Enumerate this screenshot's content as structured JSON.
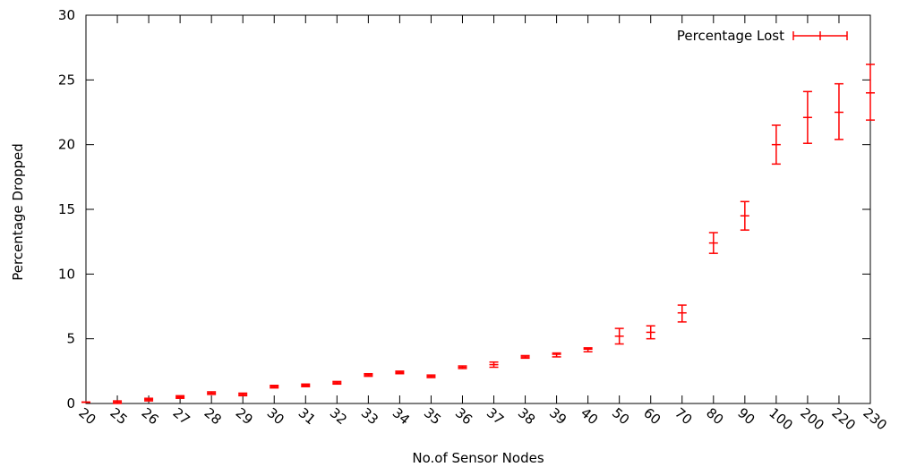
{
  "chart_data": {
    "type": "scatter",
    "title": "",
    "xlabel": "No.of Sensor Nodes",
    "ylabel": "Percentage Dropped",
    "categories": [
      "20",
      "25",
      "26",
      "27",
      "28",
      "29",
      "30",
      "31",
      "32",
      "33",
      "34",
      "35",
      "36",
      "37",
      "38",
      "39",
      "40",
      "50",
      "60",
      "70",
      "80",
      "90",
      "100",
      "200",
      "220",
      "230"
    ],
    "ylim": [
      0,
      30
    ],
    "yticks": [
      "0",
      "5",
      "10",
      "15",
      "20",
      "25",
      "30"
    ],
    "grid": false,
    "legend_position": "top-right",
    "series": [
      {
        "name": "Percentage Lost",
        "color": "#ff0000",
        "style": "errorbars",
        "values": [
          0.1,
          0.1,
          0.3,
          0.5,
          0.8,
          0.7,
          1.3,
          1.4,
          1.6,
          2.2,
          2.4,
          2.1,
          2.8,
          3.0,
          3.6,
          3.8,
          4.2,
          5.2,
          5.5,
          7.0,
          12.4,
          14.5,
          20.0,
          22.1,
          22.5,
          24.0
        ],
        "low": [
          0.1,
          0.0,
          0.2,
          0.4,
          0.7,
          0.6,
          1.2,
          1.3,
          1.5,
          2.1,
          2.3,
          2.0,
          2.7,
          2.8,
          3.5,
          3.6,
          4.0,
          4.6,
          5.0,
          6.3,
          11.6,
          13.4,
          18.5,
          20.1,
          20.4,
          21.9
        ],
        "high": [
          0.1,
          0.2,
          0.4,
          0.6,
          0.9,
          0.8,
          1.4,
          1.5,
          1.7,
          2.3,
          2.5,
          2.2,
          2.9,
          3.2,
          3.7,
          3.9,
          4.3,
          5.8,
          6.0,
          7.6,
          13.2,
          15.6,
          21.5,
          24.1,
          24.7,
          26.2
        ]
      }
    ]
  }
}
